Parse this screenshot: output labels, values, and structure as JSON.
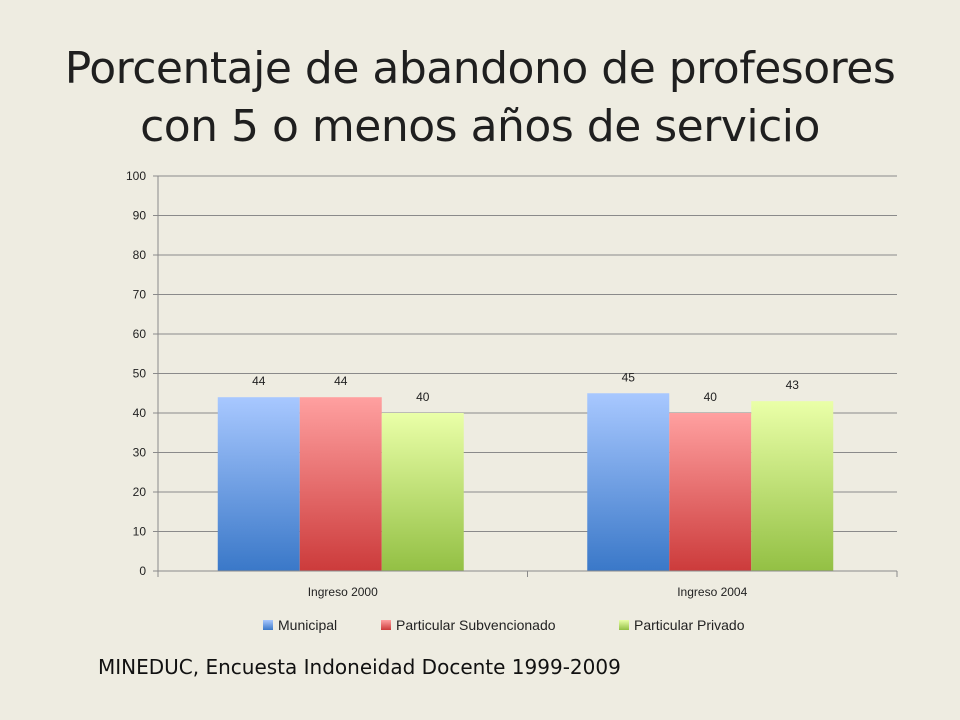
{
  "title_line1": "Porcentaje de abandono de profesores",
  "title_line2": "con 5 o menos años de servicio",
  "source": "MINEDUC, Encuesta Indoneidad Docente  1999-2009",
  "chart_data": {
    "type": "bar",
    "title": "Porcentaje de abandono de profesores con 5 o menos años de servicio",
    "categories": [
      "Ingreso 2000",
      "Ingreso 2004"
    ],
    "series": [
      {
        "name": "Municipal",
        "values": [
          44,
          45
        ],
        "color": "#4f81bd"
      },
      {
        "name": "Particular Subvencionado",
        "values": [
          44,
          40
        ],
        "color": "#c0504d"
      },
      {
        "name": "Particular Privado",
        "values": [
          40,
          43
        ],
        "color": "#9bbb59"
      }
    ],
    "ylim": [
      0,
      100
    ],
    "yticks": [
      0,
      10,
      20,
      30,
      40,
      50,
      60,
      70,
      80,
      90,
      100
    ],
    "grid": true,
    "legend": "bottom"
  }
}
